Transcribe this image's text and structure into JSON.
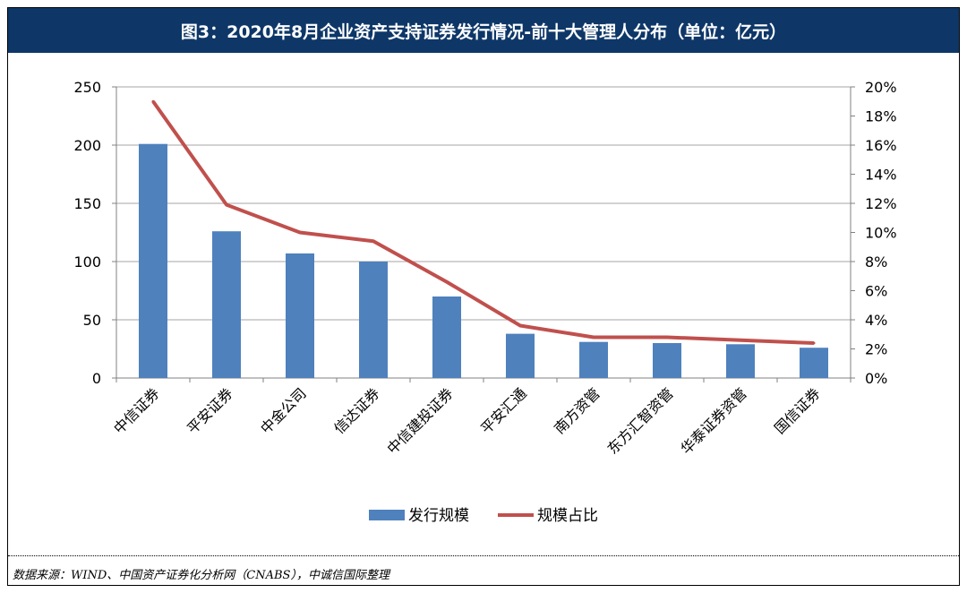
{
  "title": "图3：2020年8月企业资产支持证券发行情况-前十大管理人分布（单位：亿元）",
  "source": "数据来源：WIND、中国资产证券化分析网（CNABS），中诚信国际整理",
  "chart_data": {
    "type": "bar",
    "categories": [
      "中信证券",
      "平安证券",
      "中金公司",
      "信达证券",
      "中信建投证券",
      "平安汇通",
      "南方资管",
      "东方汇智资管",
      "华泰证券资管",
      "国信证券"
    ],
    "series": [
      {
        "name": "发行规模",
        "type": "bar",
        "axis": "left",
        "color": "#4f81bd",
        "values": [
          201,
          126,
          107,
          100,
          70,
          38,
          31,
          30,
          29,
          26
        ]
      },
      {
        "name": "规模占比",
        "type": "line",
        "axis": "right",
        "color": "#c0504d",
        "values": [
          19.0,
          11.9,
          10.0,
          9.4,
          6.6,
          3.6,
          2.8,
          2.8,
          2.6,
          2.4
        ]
      }
    ],
    "y_left": {
      "min": 0,
      "max": 250,
      "step": 50,
      "ticks": [
        "0",
        "50",
        "100",
        "150",
        "200",
        "250"
      ]
    },
    "y_right": {
      "min": 0,
      "max": 20,
      "step": 2,
      "ticks": [
        "0%",
        "2%",
        "4%",
        "6%",
        "8%",
        "10%",
        "12%",
        "14%",
        "16%",
        "18%",
        "20%"
      ]
    },
    "grid": true,
    "legend_position": "bottom"
  }
}
